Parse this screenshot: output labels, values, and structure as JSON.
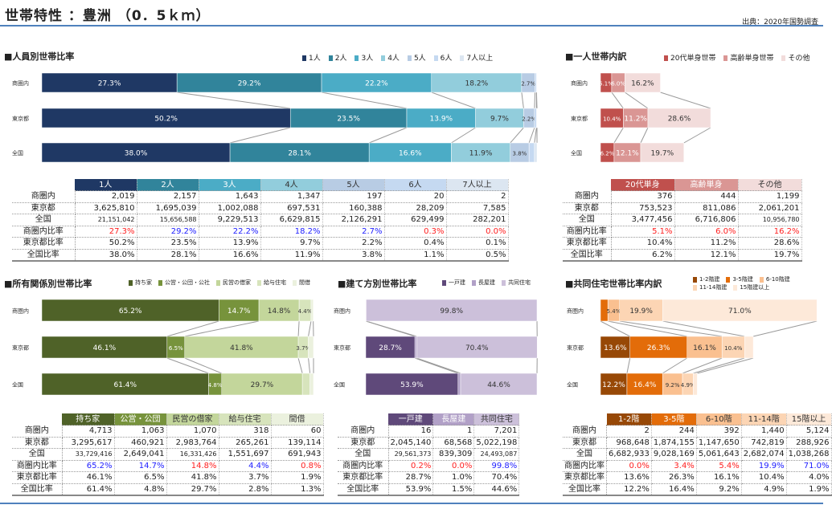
{
  "header": {
    "title": "世帯特性 ：豊洲 （0．5ｋｍ）",
    "source": "出典：2020年国勢調査"
  },
  "row_labels": [
    "商圏内",
    "東京都",
    "全国"
  ],
  "table_row_labels": [
    "商圏内",
    "東京都",
    "全国",
    "商圏内比率",
    "東京都比率",
    "全国比率"
  ],
  "charts": [
    {
      "id": "persons",
      "title": "■人員別世帯比率",
      "series": [
        "1人",
        "2人",
        "3人",
        "4人",
        "5人",
        "6人",
        "7人以上"
      ],
      "legend": [
        "1人",
        "2人",
        "3人",
        "4人",
        "5人",
        "6人",
        "7人以上"
      ],
      "colors": [
        "#1f3864",
        "#31849b",
        "#4bacc6",
        "#92cddc",
        "#b8cce4",
        "#c5d9f1",
        "#dce6f1"
      ],
      "text_colors": [
        "#fff",
        "#fff",
        "#fff",
        "#333",
        "#333",
        "#333",
        "#333"
      ],
      "percent": [
        [
          27.3,
          29.2,
          22.2,
          18.2,
          2.7,
          0.3,
          0.0
        ],
        [
          50.2,
          23.5,
          13.9,
          9.7,
          2.2,
          0.4,
          0.1
        ],
        [
          38.0,
          28.1,
          16.6,
          11.9,
          3.8,
          1.1,
          0.5
        ]
      ],
      "table": [
        [
          "2,019",
          "2,157",
          "1,643",
          "1,347",
          "197",
          "20",
          "2"
        ],
        [
          "3,625,810",
          "1,695,039",
          "1,002,088",
          "697,531",
          "160,388",
          "28,209",
          "7,585"
        ],
        [
          "21,151,042",
          "15,656,588",
          "9,229,513",
          "6,629,815",
          "2,126,291",
          "629,499",
          "282,201"
        ],
        [
          "27.3%",
          "29.2%",
          "22.2%",
          "18.2%",
          "2.7%",
          "0.3%",
          "0.0%"
        ],
        [
          "50.2%",
          "23.5%",
          "13.9%",
          "9.7%",
          "2.2%",
          "0.4%",
          "0.1%"
        ],
        [
          "38.0%",
          "28.1%",
          "16.6%",
          "11.9%",
          "3.8%",
          "1.1%",
          "0.5%"
        ]
      ],
      "ratio_colors": [
        "#ff2020",
        "#2020ff",
        "#2020ff",
        "#2020ff",
        "#2020ff",
        "#ff2020",
        "#ff2020"
      ]
    },
    {
      "id": "single",
      "title": "■一人世帯内訳",
      "series": [
        "20代単身",
        "高齢単身",
        "その他"
      ],
      "legend": [
        "20代単身世帯",
        "高齢単身世帯",
        "その他"
      ],
      "colors": [
        "#c0504d",
        "#da9694",
        "#f2dcdb"
      ],
      "text_colors": [
        "#fff",
        "#fff",
        "#333"
      ],
      "percent": [
        [
          5.1,
          6.0,
          16.2
        ],
        [
          10.4,
          11.2,
          28.6
        ],
        [
          6.2,
          12.1,
          19.7
        ]
      ],
      "table": [
        [
          "376",
          "444",
          "1,199"
        ],
        [
          "753,523",
          "811,086",
          "2,061,201"
        ],
        [
          "3,477,456",
          "6,716,806",
          "10,956,780"
        ],
        [
          "5.1%",
          "6.0%",
          "16.2%"
        ],
        [
          "10.4%",
          "11.2%",
          "28.6%"
        ],
        [
          "6.2%",
          "12.1%",
          "19.7%"
        ]
      ],
      "ratio_colors": [
        "#ff2020",
        "#ff2020",
        "#ff2020"
      ]
    },
    {
      "id": "tenure",
      "title": "■所有関係別世帯比率",
      "series": [
        "持ち家",
        "公営・公団",
        "民営の借家",
        "給与住宅",
        "間借"
      ],
      "legend": [
        "持ち家",
        "公営・公団・公社",
        "民営の借家",
        "給与住宅",
        "間借"
      ],
      "colors": [
        "#4f6228",
        "#77933c",
        "#c3d69b",
        "#d7e4bc",
        "#ebf1de"
      ],
      "text_colors": [
        "#fff",
        "#fff",
        "#333",
        "#333",
        "#333"
      ],
      "percent": [
        [
          65.2,
          14.7,
          14.8,
          4.4,
          0.8
        ],
        [
          46.1,
          6.5,
          41.8,
          3.7,
          1.9
        ],
        [
          61.4,
          4.8,
          29.7,
          2.8,
          1.3
        ]
      ],
      "table": [
        [
          "4,713",
          "1,063",
          "1,070",
          "318",
          "60"
        ],
        [
          "3,295,617",
          "460,921",
          "2,983,764",
          "265,261",
          "139,114"
        ],
        [
          "33,729,416",
          "2,649,041",
          "16,331,426",
          "1,551,697",
          "691,943"
        ],
        [
          "65.2%",
          "14.7%",
          "14.8%",
          "4.4%",
          "0.8%"
        ],
        [
          "46.1%",
          "6.5%",
          "41.8%",
          "3.7%",
          "1.9%"
        ],
        [
          "61.4%",
          "4.8%",
          "29.7%",
          "2.8%",
          "1.3%"
        ]
      ],
      "ratio_colors": [
        "#2020ff",
        "#2020ff",
        "#ff2020",
        "#2020ff",
        "#ff2020"
      ]
    },
    {
      "id": "building",
      "title": "■建て方別世帯比率",
      "series": [
        "一戸建",
        "長屋建",
        "共同住宅"
      ],
      "legend": [
        "一戸建",
        "長屋建",
        "共同住宅"
      ],
      "colors": [
        "#5f497a",
        "#b1a0c7",
        "#ccc0da"
      ],
      "text_colors": [
        "#fff",
        "#fff",
        "#333"
      ],
      "percent": [
        [
          0.2,
          0.0,
          99.8
        ],
        [
          28.7,
          1.0,
          70.4
        ],
        [
          53.9,
          1.5,
          44.6
        ]
      ],
      "table": [
        [
          "16",
          "1",
          "7,201"
        ],
        [
          "2,045,140",
          "68,568",
          "5,022,198"
        ],
        [
          "29,561,373",
          "839,309",
          "24,493,087"
        ],
        [
          "0.2%",
          "0.0%",
          "99.8%"
        ],
        [
          "28.7%",
          "1.0%",
          "70.4%"
        ],
        [
          "53.9%",
          "1.5%",
          "44.6%"
        ]
      ],
      "ratio_colors": [
        "#ff2020",
        "#ff2020",
        "#2020ff"
      ]
    },
    {
      "id": "floors",
      "title": "■共同住宅世帯比率内訳",
      "series": [
        "1-2階",
        "3-5階",
        "6-10階",
        "11-14階",
        "15階以上"
      ],
      "legend": [
        "1-2階建",
        "3-5階建",
        "6-10階建",
        "11-14階建",
        "15階建以上"
      ],
      "colors": [
        "#974806",
        "#e36c09",
        "#fac090",
        "#fcd5b4",
        "#fde9d9"
      ],
      "text_colors": [
        "#fff",
        "#fff",
        "#333",
        "#333",
        "#333"
      ],
      "percent": [
        [
          0.0,
          3.4,
          5.4,
          19.9,
          71.0
        ],
        [
          13.6,
          26.3,
          16.1,
          10.4,
          4.0
        ],
        [
          12.2,
          16.4,
          9.2,
          4.9,
          1.9
        ]
      ],
      "table": [
        [
          "2",
          "244",
          "392",
          "1,440",
          "5,124"
        ],
        [
          "968,648",
          "1,874,155",
          "1,147,650",
          "742,819",
          "288,926"
        ],
        [
          "6,682,933",
          "9,028,169",
          "5,061,643",
          "2,682,074",
          "1,038,268"
        ],
        [
          "0.0%",
          "3.4%",
          "5.4%",
          "19.9%",
          "71.0%"
        ],
        [
          "13.6%",
          "26.3%",
          "16.1%",
          "10.4%",
          "4.0%"
        ],
        [
          "12.2%",
          "16.4%",
          "9.2%",
          "4.9%",
          "1.9%"
        ]
      ],
      "ratio_colors": [
        "#ff2020",
        "#ff2020",
        "#ff2020",
        "#2020ff",
        "#2020ff"
      ]
    }
  ]
}
